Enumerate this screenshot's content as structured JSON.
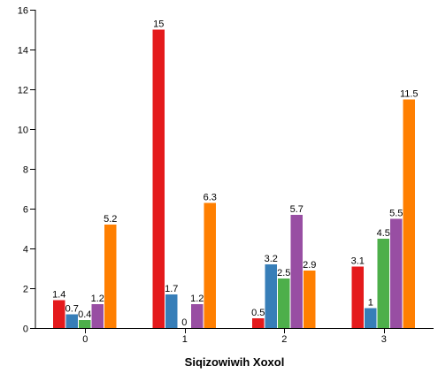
{
  "chart_data": {
    "type": "bar",
    "categories": [
      "0",
      "1",
      "2",
      "3"
    ],
    "series": [
      {
        "color": "#e41a1c",
        "values": [
          1.4,
          15,
          0.5,
          3.1
        ]
      },
      {
        "color": "#377eb8",
        "values": [
          0.7,
          1.7,
          3.2,
          1
        ]
      },
      {
        "color": "#4daf4a",
        "values": [
          0.4,
          0,
          2.5,
          4.5
        ]
      },
      {
        "color": "#984ea3",
        "values": [
          1.2,
          1.2,
          5.7,
          5.5
        ]
      },
      {
        "color": "#ff7f00",
        "values": [
          5.2,
          6.3,
          2.9,
          11.5
        ]
      }
    ],
    "xlabel": "Siqizowiwih Xoxol",
    "ylabel": "",
    "ylim": [
      0,
      16
    ],
    "yticks": [
      0,
      2,
      4,
      6,
      8,
      10,
      12,
      14,
      16
    ],
    "grid": false,
    "legend": "none"
  }
}
